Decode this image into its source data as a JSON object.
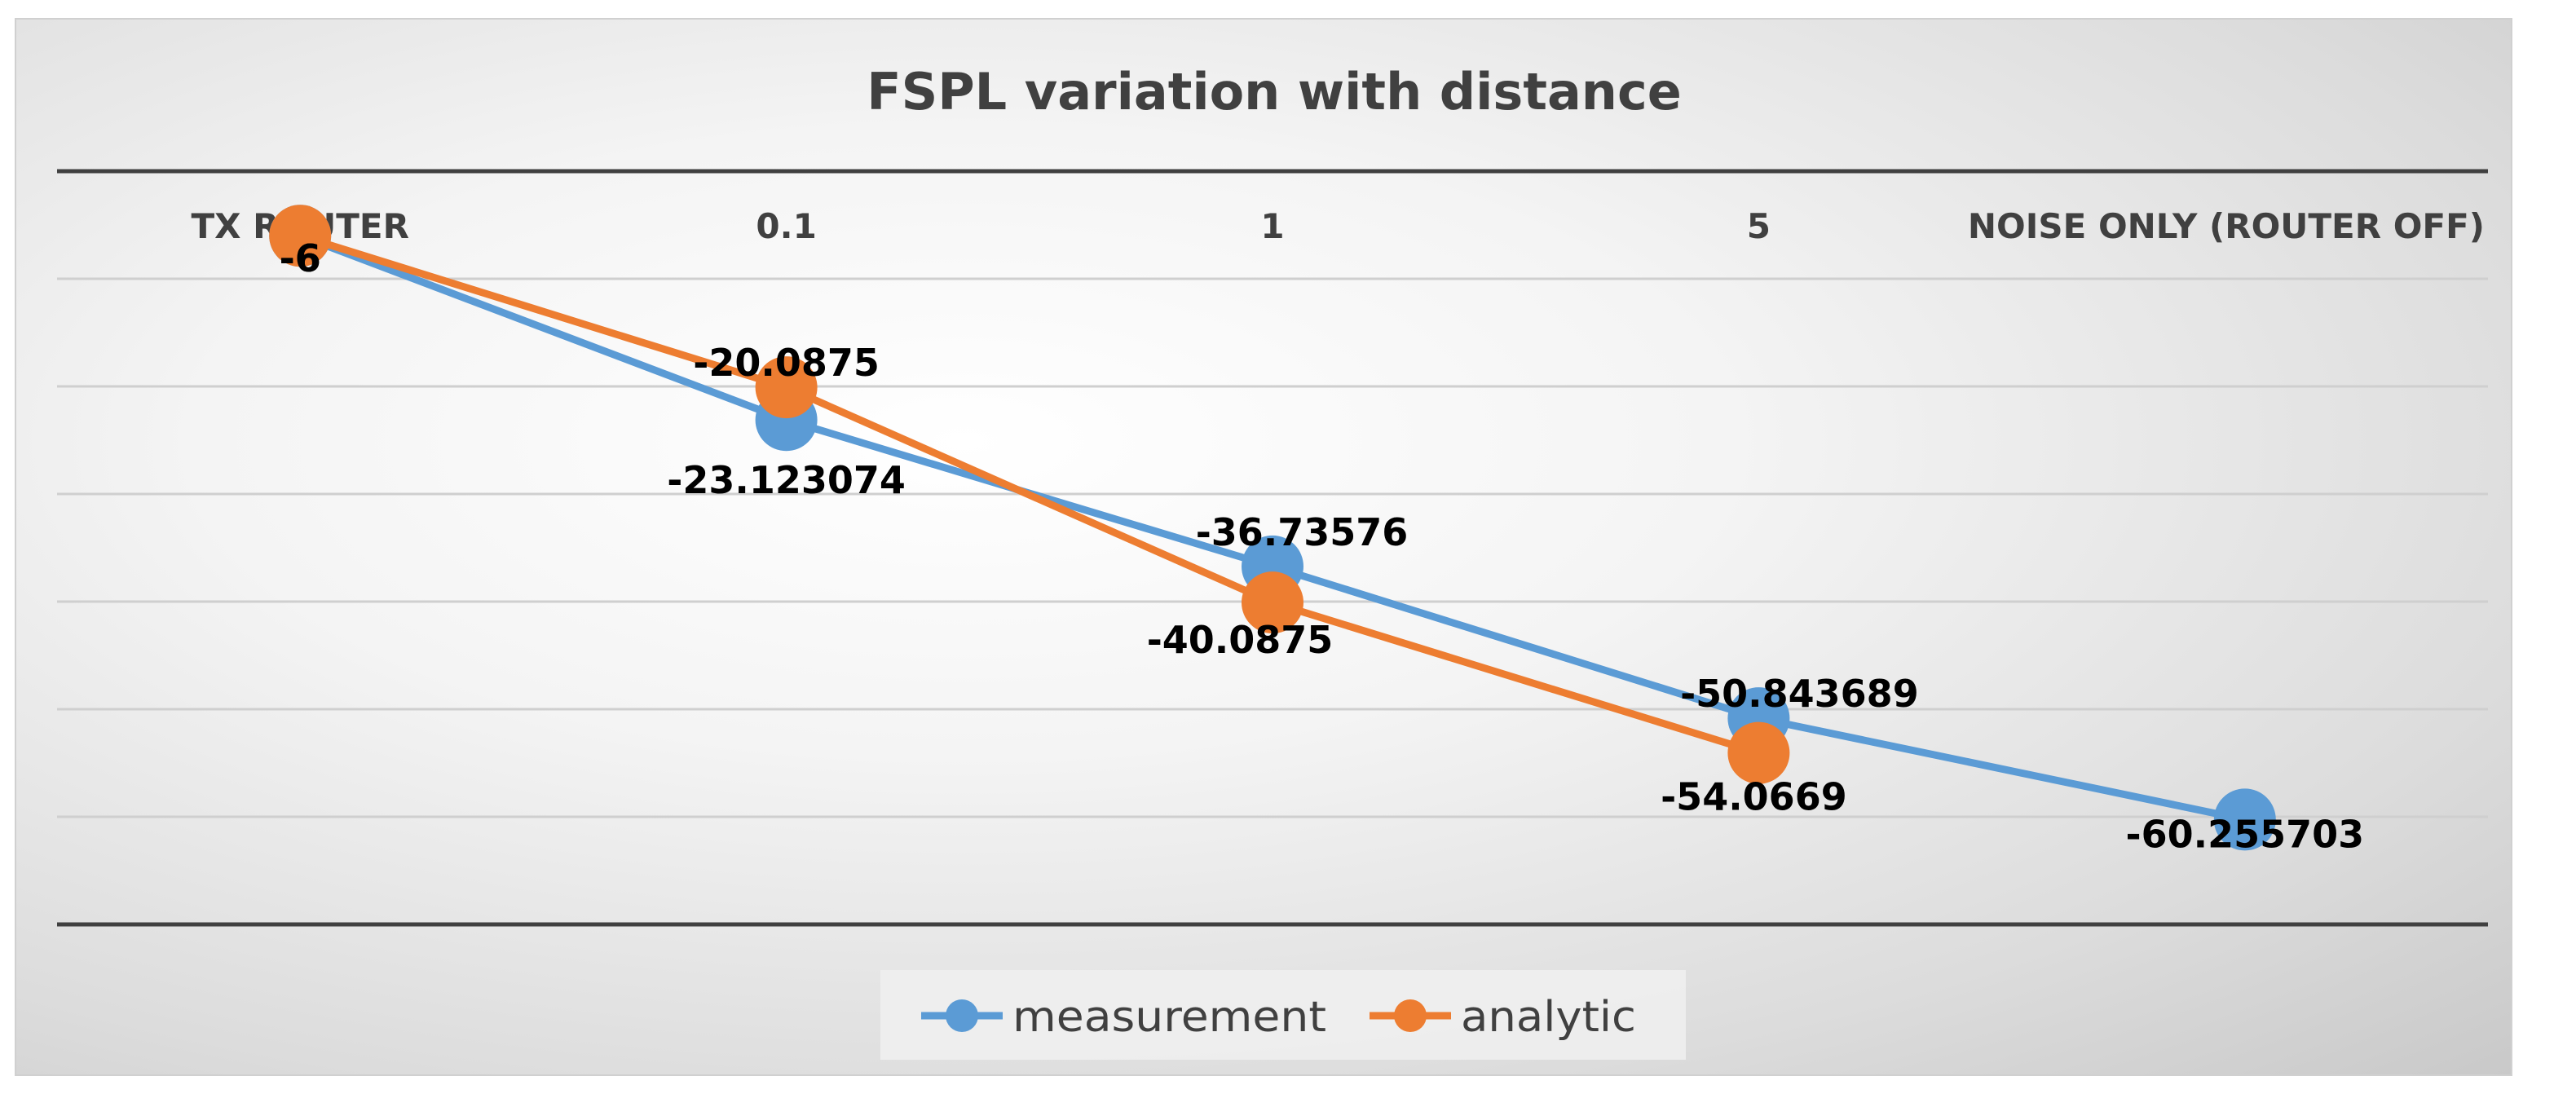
{
  "chart_data": {
    "type": "line",
    "title": "FSPL variation with distance",
    "categories": [
      "TX ROUTER",
      "0.1",
      "1",
      "5",
      "NOISE ONLY (ROUTER OFF)"
    ],
    "ylim": [
      -70,
      0
    ],
    "gridlines": true,
    "legend_position": "bottom",
    "series": [
      {
        "name": "measurement",
        "color": "#5b9bd5",
        "values": [
          -6,
          -23.123074,
          -36.73576,
          -50.843689,
          -60.255703
        ],
        "labels": [
          "-6",
          "-23.123074",
          "-36.73576",
          "-50.843689",
          "-60.255703"
        ]
      },
      {
        "name": "analytic",
        "color": "#ed7d31",
        "values": [
          -6,
          -20.0875,
          -40.0875,
          -54.0669,
          null
        ],
        "labels": [
          "-6",
          "-20.0875",
          "-40.0875",
          "-54.0669",
          null
        ]
      }
    ]
  }
}
